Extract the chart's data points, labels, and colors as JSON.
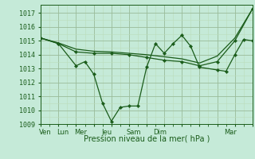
{
  "background_color": "#c5ead8",
  "grid_major_color": "#99bb99",
  "grid_minor_color": "#bbddbb",
  "line_color": "#1a5c1a",
  "title": "Pression niveau de la mer( hPa )",
  "ylim": [
    1009,
    1017.6
  ],
  "yticks": [
    1009,
    1010,
    1011,
    1012,
    1013,
    1014,
    1015,
    1016,
    1017
  ],
  "xtick_positions": [
    0.5,
    2.5,
    4.5,
    7.5,
    10.5,
    13.5,
    17.5,
    21.5
  ],
  "xtick_labels": [
    "Ven",
    "Lun",
    "Mer",
    "Jeu",
    "Sam",
    "Dim",
    "",
    "Mar"
  ],
  "xgrid_positions": [
    0,
    2,
    4,
    6,
    8,
    10,
    12,
    14,
    16,
    18,
    20,
    22,
    24
  ],
  "series1_x": [
    0,
    2,
    4,
    5,
    6,
    7,
    8,
    9,
    10,
    11,
    12,
    13,
    14,
    15,
    16,
    17,
    18,
    20,
    21,
    22,
    23,
    24
  ],
  "series1_y": [
    1015.2,
    1014.8,
    1013.2,
    1013.5,
    1012.6,
    1010.5,
    1009.2,
    1010.2,
    1010.3,
    1010.3,
    1013.1,
    1014.8,
    1014.1,
    1014.8,
    1015.4,
    1014.6,
    1013.1,
    1012.9,
    1012.8,
    1014.0,
    1015.1,
    1015.0
  ],
  "series2_x": [
    0,
    2,
    4,
    6,
    8,
    10,
    12,
    14,
    16,
    18,
    20,
    22,
    24
  ],
  "series2_y": [
    1015.2,
    1014.8,
    1014.2,
    1014.1,
    1014.1,
    1014.0,
    1013.8,
    1013.6,
    1013.5,
    1013.2,
    1013.5,
    1015.0,
    1017.3
  ],
  "series3_x": [
    0,
    2,
    4,
    6,
    8,
    10,
    12,
    14,
    16,
    18,
    20,
    22,
    24
  ],
  "series3_y": [
    1015.2,
    1014.85,
    1014.4,
    1014.25,
    1014.2,
    1014.1,
    1014.0,
    1013.85,
    1013.7,
    1013.4,
    1013.9,
    1015.2,
    1017.3
  ]
}
